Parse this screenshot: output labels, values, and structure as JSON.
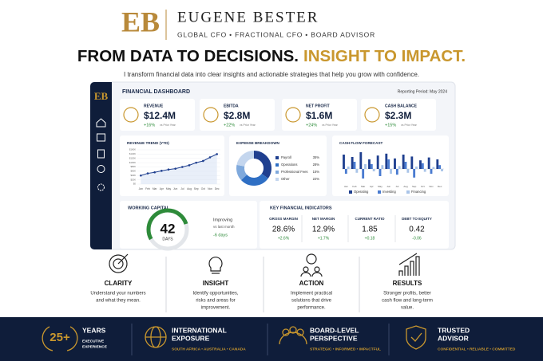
{
  "header": {
    "logo": "EB",
    "name": "EUGENE BESTER",
    "roles": "GLOBAL CFO • FRACTIONAL CFO • BOARD ADVISOR"
  },
  "headline": {
    "part1": "FROM DATA TO DECISIONS.",
    "part2": "INSIGHT TO IMPACT."
  },
  "tagline": "I transform financial data into clear insights and actionable strategies that help you grow with confidence.",
  "dashboard": {
    "logo": "EB",
    "title": "FINANCIAL DASHBOARD",
    "period": "Reporting Period: May 2024",
    "kpis": [
      {
        "label": "REVENUE",
        "value": "$12.4M",
        "change": "+16%",
        "note": "vs Prior Year"
      },
      {
        "label": "EBITDA",
        "value": "$2.8M",
        "change": "+22%",
        "note": "vs Prior Year"
      },
      {
        "label": "NET PROFIT",
        "value": "$1.6M",
        "change": "+24%",
        "note": "vs Prior Year"
      },
      {
        "label": "CASH BALANCE",
        "value": "$2.3M",
        "change": "+15%",
        "note": "vs Prior Year"
      }
    ],
    "charts": [
      {
        "type": "line",
        "title": "REVENUE TREND (YTD)",
        "color": "#1f3f8f",
        "categories": [
          "Jan",
          "Feb",
          "Mar",
          "Apr",
          "May",
          "Jun",
          "Jul",
          "Aug",
          "Sep",
          "Oct",
          "Nov",
          "Dec"
        ],
        "values": [
          40,
          50,
          55,
          62,
          68,
          72,
          80,
          88,
          100,
          108,
          125,
          140
        ],
        "ylim": [
          0,
          160
        ],
        "yticks": [
          {
            "value": 0,
            "label": "$0"
          },
          {
            "value": 20,
            "label": "$20K"
          },
          {
            "value": 40,
            "label": "$40K"
          },
          {
            "value": 60,
            "label": "$60K"
          },
          {
            "value": 80,
            "label": "$80K"
          },
          {
            "value": 100,
            "label": "$100K"
          },
          {
            "value": 120,
            "label": "$120K"
          },
          {
            "value": 140,
            "label": "$140K"
          },
          {
            "value": 160,
            "label": "$160K"
          }
        ]
      },
      {
        "type": "pie",
        "title": "EXPENSE BREAKDOWN",
        "categories": [
          "Payroll",
          "Operations",
          "Professional Fees",
          "Other"
        ],
        "values": [
          35,
          28,
          15,
          22
        ],
        "value_labels": [
          "35%",
          "28%",
          "15%",
          "22%"
        ],
        "colors": [
          "#1f3f8f",
          "#2f6fc4",
          "#7fa9dc",
          "#c4d6ee"
        ]
      },
      {
        "type": "bar",
        "title": "CASH FLOW FORECAST",
        "categories": [
          "Jan",
          "Feb",
          "Mar",
          "Apr",
          "May",
          "Jun",
          "Jul",
          "Aug",
          "Sep",
          "Oct",
          "Nov",
          "Dec"
        ],
        "ylim": [
          -30,
          40
        ],
        "series": [
          {
            "name": "Operating",
            "color": "#1f3f8f",
            "values": [
              30,
              25,
              35,
              20,
              28,
              32,
              22,
              30,
              26,
              18,
              24,
              20
            ]
          },
          {
            "name": "Investing",
            "color": "#4a7bd0",
            "values": [
              -10,
              15,
              -20,
              10,
              -15,
              20,
              -12,
              15,
              -18,
              12,
              -10,
              8
            ]
          },
          {
            "name": "Financing",
            "color": "#a9c4e8",
            "values": [
              5,
              -8,
              10,
              -5,
              8,
              -10,
              6,
              -8,
              5,
              -6,
              4,
              -5
            ]
          }
        ]
      }
    ],
    "working_capital": {
      "title": "WORKING CAPITAL",
      "value": "42",
      "unit": "DAYS",
      "status": "Improving",
      "compare": "vs last month",
      "delta": "-6 days"
    },
    "indicators": {
      "title": "KEY FINANCIAL INDICATORS",
      "items": [
        {
          "label": "GROSS MARGIN",
          "value": "28.6%",
          "change": "+2.6%"
        },
        {
          "label": "NET MARGIN",
          "value": "12.9%",
          "change": "+1.7%"
        },
        {
          "label": "CURRENT RATIO",
          "value": "1.85",
          "change": "+0.18"
        },
        {
          "label": "DEBT TO EQUITY",
          "value": "0.42",
          "change": "-0.06"
        }
      ]
    }
  },
  "pillars": [
    {
      "title": "CLARITY",
      "lines": [
        "Understand your numbers",
        "and what they mean."
      ]
    },
    {
      "title": "INSIGHT",
      "lines": [
        "Identify opportunities,",
        "risks and areas for",
        "improvement."
      ]
    },
    {
      "title": "ACTION",
      "lines": [
        "Implement practical",
        "solutions that drive",
        "performance."
      ]
    },
    {
      "title": "RESULTS",
      "lines": [
        "Stronger profits, better",
        "cash flow and long-term",
        "value."
      ]
    }
  ],
  "footer": [
    {
      "badge": "25+",
      "title": [
        "YEARS"
      ],
      "sub": [
        "EXECUTIVE",
        "EXPERIENCE"
      ]
    },
    {
      "title": [
        "INTERNATIONAL",
        "EXPOSURE"
      ],
      "sub": [
        "SOUTH AFRICA • AUSTRALIA • CANADA"
      ]
    },
    {
      "title": [
        "BOARD-LEVEL",
        "PERSPECTIVE"
      ],
      "sub": [
        "STRATEGIC • INFORMED • IMPACTFUL"
      ]
    },
    {
      "title": [
        "TRUSTED",
        "ADVISOR"
      ],
      "sub": [
        "CONFIDENTIAL • RELIABLE • COMMITTED"
      ]
    }
  ]
}
